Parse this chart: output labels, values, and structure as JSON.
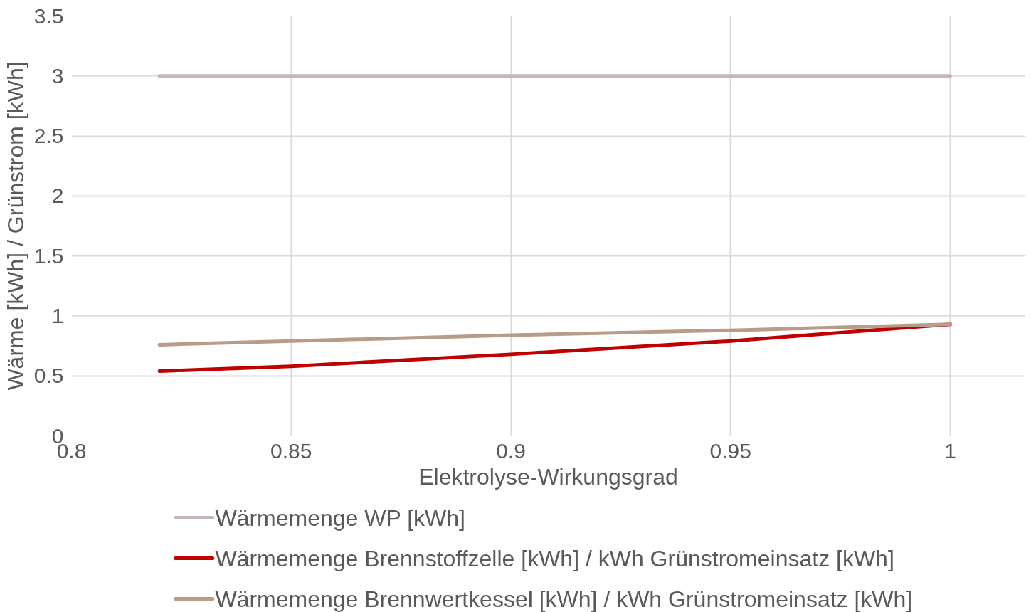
{
  "chart_data": {
    "type": "line",
    "xlabel": "Elektrolyse-Wirkungsgrad",
    "ylabel": "Wärme [kWh] / Grünstrom [kWh]",
    "x": [
      0.82,
      0.85,
      0.9,
      0.95,
      1.0
    ],
    "series": [
      {
        "name": "Wärmemenge WP [kWh]",
        "color": "#c9b6b6",
        "values": [
          3,
          3,
          3,
          3,
          3
        ]
      },
      {
        "name": "Wärmemenge Brennstoffzelle [kWh] / kWh Grünstromeinsatz [kWh]",
        "color": "#c00000",
        "values": [
          0.54,
          0.58,
          0.68,
          0.79,
          0.93
        ]
      },
      {
        "name": "Wärmemenge Brennwertkessel [kWh] / kWh Grünstromeinsatz [kWh]",
        "color": "#b89c8a",
        "values": [
          0.76,
          0.79,
          0.84,
          0.88,
          0.93
        ]
      }
    ],
    "xlim": [
      0.8,
      1.017
    ],
    "xticks": [
      0.8,
      0.85,
      0.9,
      0.95,
      1
    ],
    "ylim": [
      0,
      3.5
    ],
    "yticks": [
      0,
      0.5,
      1,
      1.5,
      2,
      2.5,
      3,
      3.5
    ],
    "grid": true,
    "legend": "bottom",
    "marker": "none",
    "line_style": "solid"
  }
}
